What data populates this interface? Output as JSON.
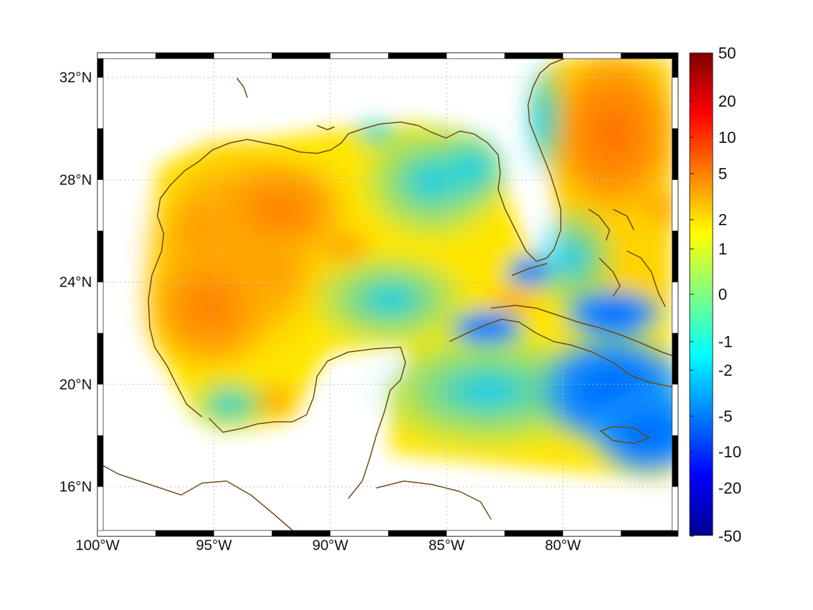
{
  "map": {
    "lon_range": [
      -100,
      -75
    ],
    "lat_range": [
      14.2,
      33
    ],
    "lon_ticks": [
      {
        "lon": -100,
        "label": "100°W"
      },
      {
        "lon": -95,
        "label": "95°W"
      },
      {
        "lon": -90,
        "label": "90°W"
      },
      {
        "lon": -85,
        "label": "85°W"
      },
      {
        "lon": -80,
        "label": "80°W"
      }
    ],
    "lat_ticks": [
      {
        "lat": 32,
        "label": "32°N"
      },
      {
        "lat": 28,
        "label": "28°N"
      },
      {
        "lat": 24,
        "label": "24°N"
      },
      {
        "lat": 20,
        "label": "20°N"
      },
      {
        "lat": 16,
        "label": "16°N"
      }
    ],
    "grid": true,
    "coastline_color": "#6b4a12",
    "colormap": "jet",
    "colorbar": {
      "placement": "right",
      "labels": [
        "50",
        "20",
        "10",
        "5",
        "2",
        "1",
        "0",
        "-1",
        "-2",
        "-5",
        "-10",
        "-20",
        "-50"
      ]
    }
  }
}
